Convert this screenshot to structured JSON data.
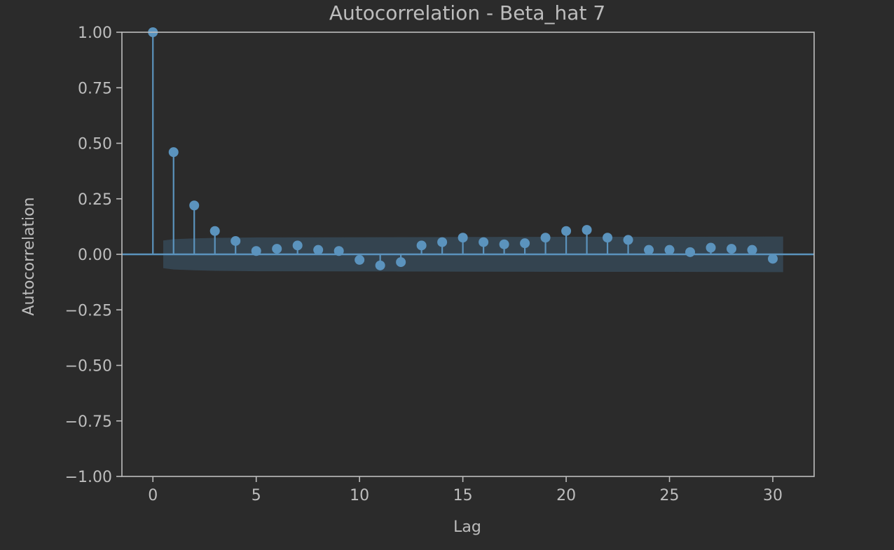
{
  "chart_data": {
    "type": "stem",
    "title": "Autocorrelation - Beta_hat 7",
    "xlabel": "Lag",
    "ylabel": "Autocorrelation",
    "xlim": [
      -1.5,
      32
    ],
    "ylim": [
      -1.0,
      1.0
    ],
    "xticks": [
      0,
      5,
      10,
      15,
      20,
      25,
      30
    ],
    "xtick_labels": [
      "0",
      "5",
      "10",
      "15",
      "20",
      "25",
      "30"
    ],
    "yticks": [
      1.0,
      0.75,
      0.5,
      0.25,
      0.0,
      -0.25,
      -0.5,
      -0.75,
      -1.0
    ],
    "ytick_labels": [
      "1.00",
      "0.75",
      "0.50",
      "0.25",
      "0.00",
      "−0.25",
      "−0.50",
      "−0.75",
      "−1.00"
    ],
    "grid": false,
    "lags": [
      0,
      1,
      2,
      3,
      4,
      5,
      6,
      7,
      8,
      9,
      10,
      11,
      12,
      13,
      14,
      15,
      16,
      17,
      18,
      19,
      20,
      21,
      22,
      23,
      24,
      25,
      26,
      27,
      28,
      29,
      30
    ],
    "values": [
      1.0,
      0.46,
      0.22,
      0.105,
      0.06,
      0.015,
      0.025,
      0.04,
      0.02,
      0.015,
      -0.025,
      -0.05,
      -0.035,
      0.04,
      0.055,
      0.075,
      0.055,
      0.045,
      0.05,
      0.075,
      0.105,
      0.11,
      0.075,
      0.065,
      0.02,
      0.02,
      0.01,
      0.03,
      0.025,
      0.02,
      -0.02
    ],
    "confidence_band": {
      "lags": [
        0.5,
        1,
        2,
        3,
        4,
        5,
        10,
        15,
        20,
        25,
        30,
        30.5
      ],
      "upper": [
        0.062,
        0.068,
        0.072,
        0.074,
        0.075,
        0.076,
        0.077,
        0.078,
        0.079,
        0.079,
        0.08,
        0.08
      ]
    },
    "colors": {
      "stem": "#5b93bd",
      "band": "#3c5a70",
      "axes": "#bdbdbd",
      "text": "#bdbdbd",
      "background": "#2b2b2b"
    }
  }
}
